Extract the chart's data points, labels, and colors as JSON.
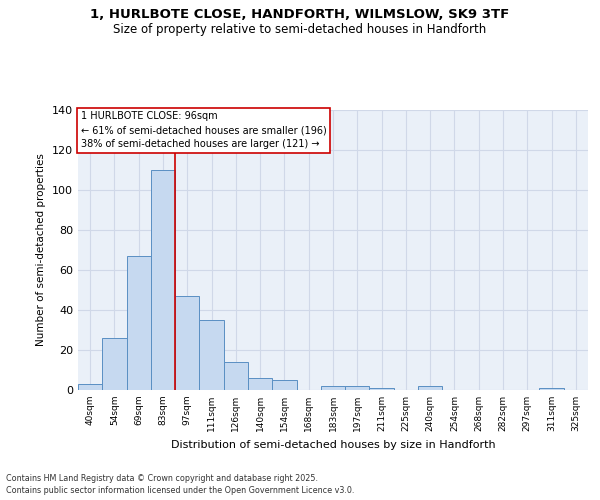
{
  "title": "1, HURLBOTE CLOSE, HANDFORTH, WILMSLOW, SK9 3TF",
  "subtitle": "Size of property relative to semi-detached houses in Handforth",
  "xlabel": "Distribution of semi-detached houses by size in Handforth",
  "ylabel": "Number of semi-detached properties",
  "categories": [
    "40sqm",
    "54sqm",
    "69sqm",
    "83sqm",
    "97sqm",
    "111sqm",
    "126sqm",
    "140sqm",
    "154sqm",
    "168sqm",
    "183sqm",
    "197sqm",
    "211sqm",
    "225sqm",
    "240sqm",
    "254sqm",
    "268sqm",
    "282sqm",
    "297sqm",
    "311sqm",
    "325sqm"
  ],
  "values": [
    3,
    26,
    67,
    110,
    47,
    35,
    14,
    6,
    5,
    0,
    2,
    2,
    1,
    0,
    2,
    0,
    0,
    0,
    0,
    1,
    0
  ],
  "bar_color": "#c6d9f0",
  "bar_edge_color": "#5a8fc3",
  "highlight_label": "1 HURLBOTE CLOSE: 96sqm",
  "annotation_line1": "← 61% of semi-detached houses are smaller (196)",
  "annotation_line2": "38% of semi-detached houses are larger (121) →",
  "red_line_color": "#cc0000",
  "grid_color": "#d0d8e8",
  "bg_color": "#eaf0f8",
  "ylim": [
    0,
    140
  ],
  "yticks": [
    0,
    20,
    40,
    60,
    80,
    100,
    120,
    140
  ],
  "footer1": "Contains HM Land Registry data © Crown copyright and database right 2025.",
  "footer2": "Contains public sector information licensed under the Open Government Licence v3.0."
}
